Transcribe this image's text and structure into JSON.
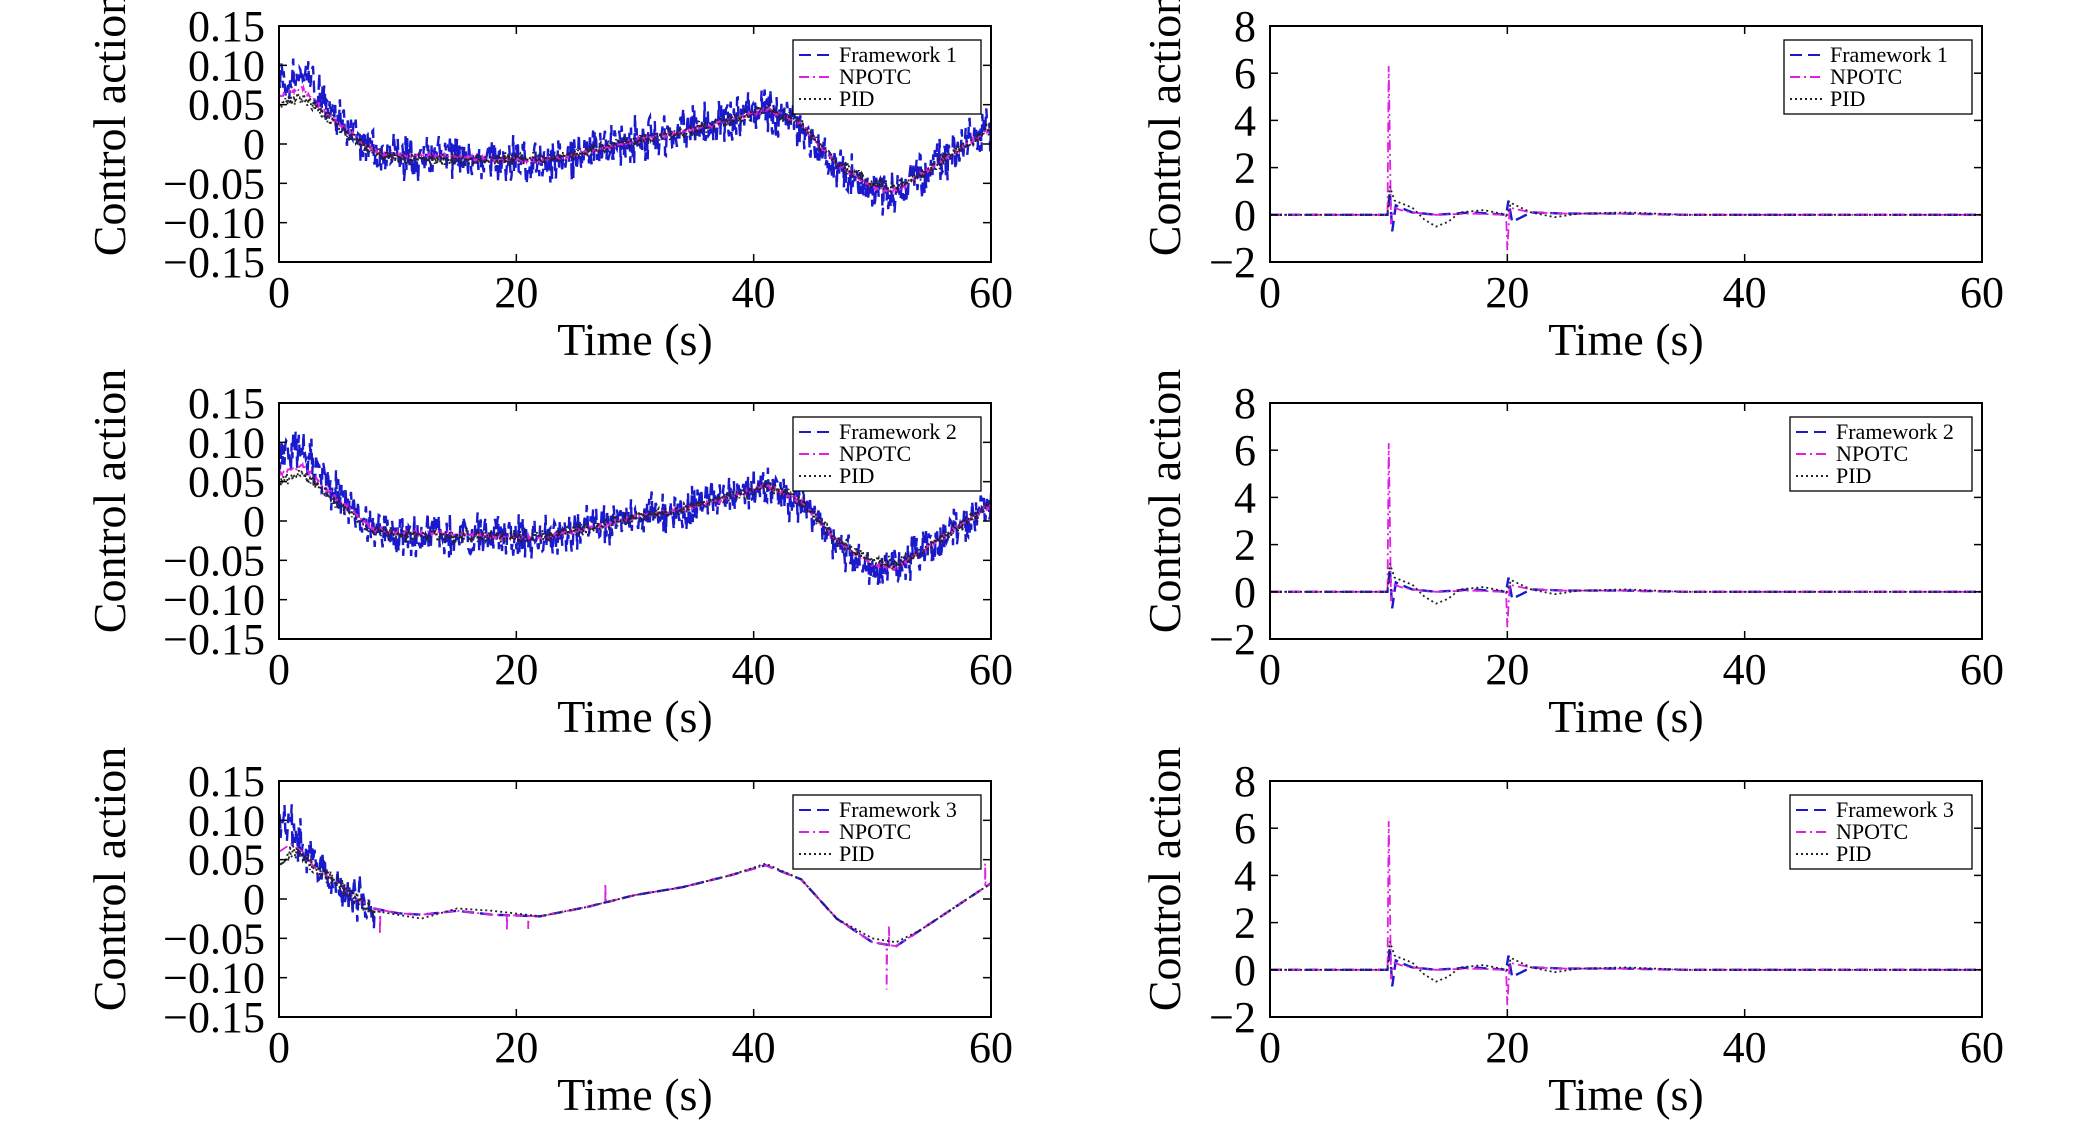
{
  "chart_data": [
    {
      "type": "line",
      "xlabel": "Time (s)",
      "ylabel": "Control action",
      "xlim": [
        0,
        60
      ],
      "ylim": [
        -0.15,
        0.15
      ],
      "xticks": [
        "0",
        "20",
        "40",
        "60"
      ],
      "yticks": [
        "0.15",
        "0.10",
        "0.05",
        "0",
        "−0.05",
        "−0.10",
        "−0.15"
      ],
      "legend_position": "top-right",
      "series": [
        {
          "name": "Framework 1",
          "color": "#1a1acc",
          "style": "dashed",
          "x": [
            0,
            2,
            4,
            6,
            8,
            10,
            14,
            18,
            22,
            26,
            30,
            34,
            38,
            41,
            44,
            47,
            50,
            52,
            54,
            57,
            60
          ],
          "y": [
            0.08,
            0.09,
            0.05,
            0.02,
            -0.01,
            -0.02,
            -0.015,
            -0.02,
            -0.025,
            -0.01,
            0.005,
            0.015,
            0.03,
            0.045,
            0.02,
            -0.03,
            -0.06,
            -0.06,
            -0.04,
            -0.01,
            0.02
          ],
          "noise": 0.035
        },
        {
          "name": "NPOTC",
          "color": "#e020e0",
          "style": "dashdot",
          "x": [
            0,
            2,
            4,
            6,
            8,
            10,
            14,
            18,
            22,
            26,
            30,
            34,
            38,
            41,
            44,
            47,
            50,
            52,
            54,
            57,
            60
          ],
          "y": [
            0.06,
            0.07,
            0.04,
            0.015,
            -0.01,
            -0.015,
            -0.015,
            -0.02,
            -0.022,
            -0.01,
            0.005,
            0.015,
            0.03,
            0.045,
            0.025,
            -0.025,
            -0.055,
            -0.06,
            -0.04,
            -0.01,
            0.02
          ],
          "noise": 0.004
        },
        {
          "name": "PID",
          "color": "#222222",
          "style": "dotted",
          "x": [
            0,
            2,
            4,
            6,
            8,
            10,
            14,
            18,
            22,
            26,
            30,
            34,
            38,
            41,
            44,
            47,
            50,
            52,
            54,
            57,
            60
          ],
          "y": [
            0.05,
            0.06,
            0.035,
            0.01,
            -0.012,
            -0.018,
            -0.02,
            -0.02,
            -0.02,
            -0.01,
            0.005,
            0.015,
            0.03,
            0.045,
            0.025,
            -0.025,
            -0.05,
            -0.055,
            -0.04,
            -0.01,
            0.02
          ],
          "noise": 0.01
        }
      ]
    },
    {
      "type": "line",
      "xlabel": "Time (s)",
      "ylabel": "Control action",
      "xlim": [
        0,
        60
      ],
      "ylim": [
        -2,
        8
      ],
      "xticks": [
        "0",
        "20",
        "40",
        "60"
      ],
      "yticks": [
        "8",
        "6",
        "4",
        "2",
        "0",
        "−2"
      ],
      "legend_position": "top-right",
      "series": [
        {
          "name": "Framework 1",
          "color": "#1a1acc",
          "style": "dashed",
          "x": [
            0,
            9.9,
            10.1,
            10.3,
            10.6,
            11,
            12,
            14,
            17,
            19.9,
            20.1,
            20.4,
            22,
            25,
            30,
            35,
            40,
            50,
            60
          ],
          "y": [
            0,
            0,
            1.0,
            -0.7,
            0.4,
            0.3,
            0.1,
            0.0,
            0.1,
            0,
            0.6,
            -0.3,
            0.1,
            0.05,
            0.05,
            0,
            0,
            0,
            0
          ]
        },
        {
          "name": "NPOTC",
          "color": "#e020e0",
          "style": "dashdot",
          "x": [
            0,
            9.9,
            10.0,
            10.2,
            10.5,
            11,
            12,
            14,
            17,
            19.9,
            20.0,
            20.2,
            22,
            25,
            30,
            35,
            40,
            50,
            60
          ],
          "y": [
            0,
            0,
            6.3,
            -0.4,
            0.3,
            0.2,
            0.1,
            0,
            0.05,
            0,
            -1.5,
            0.3,
            0.1,
            0.05,
            0.05,
            0,
            0,
            0,
            0
          ]
        },
        {
          "name": "PID",
          "color": "#222222",
          "style": "dotted",
          "x": [
            0,
            9.9,
            10.1,
            10.5,
            11,
            12,
            13,
            14,
            15,
            16,
            18,
            20,
            20.3,
            22,
            24,
            26,
            30,
            35,
            40,
            50,
            60
          ],
          "y": [
            0,
            0,
            1.2,
            0.6,
            0.5,
            0.3,
            -0.2,
            -0.5,
            -0.3,
            0.1,
            0.2,
            0,
            0.5,
            0.1,
            -0.1,
            0.05,
            0.1,
            0,
            0,
            0,
            0
          ]
        }
      ]
    },
    {
      "type": "line",
      "xlabel": "Time (s)",
      "ylabel": "Control action",
      "xlim": [
        0,
        60
      ],
      "ylim": [
        -0.15,
        0.15
      ],
      "xticks": [
        "0",
        "20",
        "40",
        "60"
      ],
      "yticks": [
        "0.15",
        "0.10",
        "0.05",
        "0",
        "−0.05",
        "−0.10",
        "−0.15"
      ],
      "legend_position": "top-right",
      "series": [
        {
          "name": "Framework 2",
          "color": "#1a1acc",
          "style": "dashed",
          "x": [
            0,
            2,
            4,
            6,
            8,
            10,
            14,
            18,
            22,
            26,
            30,
            34,
            38,
            41,
            44,
            47,
            50,
            52,
            54,
            57,
            60
          ],
          "y": [
            0.08,
            0.09,
            0.05,
            0.02,
            -0.01,
            -0.02,
            -0.015,
            -0.02,
            -0.025,
            -0.01,
            0.005,
            0.015,
            0.03,
            0.045,
            0.02,
            -0.03,
            -0.06,
            -0.06,
            -0.04,
            -0.01,
            0.02
          ],
          "noise": 0.033
        },
        {
          "name": "NPOTC",
          "color": "#e020e0",
          "style": "dashdot",
          "x": [
            0,
            2,
            4,
            6,
            8,
            10,
            14,
            18,
            22,
            26,
            30,
            34,
            38,
            41,
            44,
            47,
            50,
            52,
            54,
            57,
            60
          ],
          "y": [
            0.06,
            0.07,
            0.04,
            0.015,
            -0.01,
            -0.015,
            -0.015,
            -0.02,
            -0.022,
            -0.01,
            0.005,
            0.015,
            0.03,
            0.045,
            0.025,
            -0.025,
            -0.055,
            -0.06,
            -0.04,
            -0.01,
            0.02
          ],
          "noise": 0.004
        },
        {
          "name": "PID",
          "color": "#222222",
          "style": "dotted",
          "x": [
            0,
            2,
            4,
            6,
            8,
            10,
            14,
            18,
            22,
            26,
            30,
            34,
            38,
            41,
            44,
            47,
            50,
            52,
            54,
            57,
            60
          ],
          "y": [
            0.05,
            0.06,
            0.035,
            0.01,
            -0.012,
            -0.018,
            -0.02,
            -0.02,
            -0.02,
            -0.01,
            0.005,
            0.015,
            0.03,
            0.045,
            0.025,
            -0.025,
            -0.05,
            -0.055,
            -0.04,
            -0.01,
            0.02
          ],
          "noise": 0.01
        }
      ]
    },
    {
      "type": "line",
      "xlabel": "Time (s)",
      "ylabel": "Control action",
      "xlim": [
        0,
        60
      ],
      "ylim": [
        -2,
        8
      ],
      "xticks": [
        "0",
        "20",
        "40",
        "60"
      ],
      "yticks": [
        "8",
        "6",
        "4",
        "2",
        "0",
        "−2"
      ],
      "legend_position": "top-right",
      "series": [
        {
          "name": "Framework 2",
          "color": "#1a1acc",
          "style": "dashed",
          "x": [
            0,
            9.9,
            10.1,
            10.3,
            10.6,
            11,
            12,
            14,
            17,
            19.9,
            20.1,
            20.4,
            22,
            25,
            30,
            35,
            40,
            50,
            60
          ],
          "y": [
            0,
            0,
            1.0,
            -0.7,
            0.4,
            0.3,
            0.1,
            0.0,
            0.1,
            0,
            0.6,
            -0.3,
            0.1,
            0.05,
            0.05,
            0,
            0,
            0,
            0
          ]
        },
        {
          "name": "NPOTC",
          "color": "#e020e0",
          "style": "dashdot",
          "x": [
            0,
            9.9,
            10.0,
            10.2,
            10.5,
            11,
            12,
            14,
            17,
            19.9,
            20.0,
            20.2,
            22,
            25,
            30,
            35,
            40,
            50,
            60
          ],
          "y": [
            0,
            0,
            6.3,
            -0.4,
            0.3,
            0.2,
            0.1,
            0,
            0.05,
            0,
            -1.5,
            0.3,
            0.1,
            0.05,
            0.05,
            0,
            0,
            0,
            0
          ]
        },
        {
          "name": "PID",
          "color": "#222222",
          "style": "dotted",
          "x": [
            0,
            9.9,
            10.1,
            10.5,
            11,
            12,
            13,
            14,
            15,
            16,
            18,
            20,
            20.3,
            22,
            24,
            26,
            30,
            35,
            40,
            50,
            60
          ],
          "y": [
            0,
            0,
            1.2,
            0.6,
            0.5,
            0.3,
            -0.2,
            -0.5,
            -0.3,
            0.1,
            0.2,
            0,
            0.5,
            0.1,
            -0.1,
            0.05,
            0.1,
            0,
            0,
            0,
            0
          ]
        }
      ]
    },
    {
      "type": "line",
      "xlabel": "Time (s)",
      "ylabel": "Control action",
      "xlim": [
        0,
        60
      ],
      "ylim": [
        -0.15,
        0.15
      ],
      "xticks": [
        "0",
        "20",
        "40",
        "60"
      ],
      "yticks": [
        "0.15",
        "0.10",
        "0.05",
        "0",
        "−0.05",
        "−0.10",
        "−0.15"
      ],
      "legend_position": "top-right",
      "series": [
        {
          "name": "Framework 3",
          "color": "#1a1acc",
          "style": "dashed",
          "x": [
            0,
            1,
            2,
            3,
            4,
            5,
            6,
            8,
            10,
            12,
            15,
            18,
            22,
            26,
            30,
            34,
            38,
            41,
            44,
            47,
            50,
            52,
            54,
            57,
            60
          ],
          "y": [
            0.1,
            0.09,
            0.07,
            0.05,
            0.035,
            0.02,
            0.005,
            -0.012,
            -0.018,
            -0.02,
            -0.015,
            -0.02,
            -0.022,
            -0.01,
            0.005,
            0.015,
            0.03,
            0.043,
            0.025,
            -0.025,
            -0.055,
            -0.06,
            -0.04,
            -0.01,
            0.02
          ],
          "noise_until": 8,
          "noise": 0.035
        },
        {
          "name": "NPOTC",
          "color": "#e020e0",
          "style": "dashdot",
          "x": [
            0,
            1,
            2,
            3,
            4,
            5,
            6,
            8,
            10,
            12,
            15,
            18,
            22,
            26,
            30,
            34,
            38,
            41,
            44,
            47,
            50,
            52,
            54,
            57,
            60
          ],
          "y": [
            0.06,
            0.07,
            0.06,
            0.04,
            0.03,
            0.02,
            0.005,
            -0.012,
            -0.018,
            -0.02,
            -0.015,
            -0.02,
            -0.022,
            -0.01,
            0.005,
            0.015,
            0.03,
            0.043,
            0.025,
            -0.025,
            -0.055,
            -0.06,
            -0.04,
            -0.01,
            0.02
          ],
          "spikes": [
            [
              8.5,
              -0.045
            ],
            [
              19.2,
              -0.04
            ],
            [
              21,
              -0.038
            ],
            [
              27.5,
              0.02
            ],
            [
              51.2,
              -0.115
            ],
            [
              51.4,
              -0.035
            ],
            [
              59.5,
              0.045
            ]
          ]
        },
        {
          "name": "PID",
          "color": "#222222",
          "style": "dotted",
          "x": [
            0,
            1,
            2,
            3,
            4,
            5,
            6,
            8,
            10,
            12,
            15,
            18,
            22,
            26,
            30,
            34,
            38,
            41,
            44,
            47,
            50,
            52,
            54,
            57,
            60
          ],
          "y": [
            0.04,
            0.06,
            0.055,
            0.04,
            0.03,
            0.02,
            0.005,
            -0.015,
            -0.02,
            -0.025,
            -0.012,
            -0.015,
            -0.022,
            -0.01,
            0.005,
            0.015,
            0.03,
            0.045,
            0.025,
            -0.025,
            -0.05,
            -0.055,
            -0.04,
            -0.01,
            0.02
          ],
          "noise_until": 8,
          "noise": 0.012
        }
      ]
    },
    {
      "type": "line",
      "xlabel": "Time (s)",
      "ylabel": "Control action",
      "xlim": [
        0,
        60
      ],
      "ylim": [
        -2,
        8
      ],
      "xticks": [
        "0",
        "20",
        "40",
        "60"
      ],
      "yticks": [
        "8",
        "6",
        "4",
        "2",
        "0",
        "−2"
      ],
      "legend_position": "top-right",
      "series": [
        {
          "name": "Framework 3",
          "color": "#1a1acc",
          "style": "dashed",
          "x": [
            0,
            9.9,
            10.1,
            10.3,
            10.6,
            11,
            12,
            14,
            17,
            19.9,
            20.1,
            20.4,
            22,
            25,
            30,
            35,
            40,
            50,
            60
          ],
          "y": [
            0,
            0,
            1.0,
            -0.7,
            0.4,
            0.3,
            0.1,
            0.0,
            0.1,
            0,
            0.6,
            -0.3,
            0.1,
            0.05,
            0.05,
            0,
            0,
            0,
            0
          ]
        },
        {
          "name": "NPOTC",
          "color": "#e020e0",
          "style": "dashdot",
          "x": [
            0,
            9.9,
            10.0,
            10.2,
            10.5,
            11,
            12,
            14,
            17,
            19.9,
            20.0,
            20.2,
            22,
            25,
            30,
            35,
            40,
            50,
            60
          ],
          "y": [
            0,
            0,
            6.3,
            -0.4,
            0.3,
            0.2,
            0.1,
            0,
            0.05,
            0,
            -1.5,
            0.3,
            0.1,
            0.05,
            0.05,
            0,
            0,
            0,
            0
          ]
        },
        {
          "name": "PID",
          "color": "#222222",
          "style": "dotted",
          "x": [
            0,
            9.9,
            10.1,
            10.5,
            11,
            12,
            13,
            14,
            15,
            16,
            18,
            20,
            20.3,
            22,
            24,
            26,
            30,
            35,
            40,
            50,
            60
          ],
          "y": [
            0,
            0,
            1.2,
            0.6,
            0.5,
            0.3,
            -0.2,
            -0.5,
            -0.3,
            0.1,
            0.2,
            0,
            0.5,
            0.1,
            -0.1,
            0.05,
            0.1,
            0,
            0,
            0,
            0
          ]
        }
      ]
    }
  ]
}
